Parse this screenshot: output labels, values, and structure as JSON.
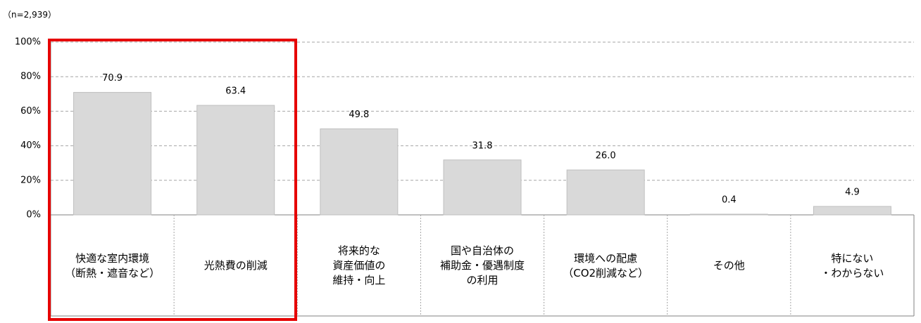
{
  "chart_data": {
    "type": "bar",
    "note": "（n=2,939）",
    "categories": [
      "快適な室内環境\n（断熱・遮音など）",
      "光熱費の削減",
      "将来的な\n資産価値の\n維持・向上",
      "国や自治体の\n補助金・優遇制度\nの利用",
      "環境への配慮\n（CO2削減など）",
      "その他",
      "特にない\n・わからない"
    ],
    "values": [
      70.9,
      63.4,
      49.8,
      31.8,
      26.0,
      0.4,
      4.9
    ],
    "value_labels": [
      "70.9",
      "63.4",
      "49.8",
      "31.8",
      "26.0",
      "0.4",
      "4.9"
    ],
    "color": "#d9d9d9",
    "ylim": [
      0,
      100
    ],
    "yticks": [
      {
        "value": 0,
        "label": "0%"
      },
      {
        "value": 20,
        "label": "20%"
      },
      {
        "value": 40,
        "label": "40%"
      },
      {
        "value": 60,
        "label": "60%"
      },
      {
        "value": 80,
        "label": "80%"
      },
      {
        "value": 100,
        "label": "100%"
      }
    ],
    "grid": true
  }
}
